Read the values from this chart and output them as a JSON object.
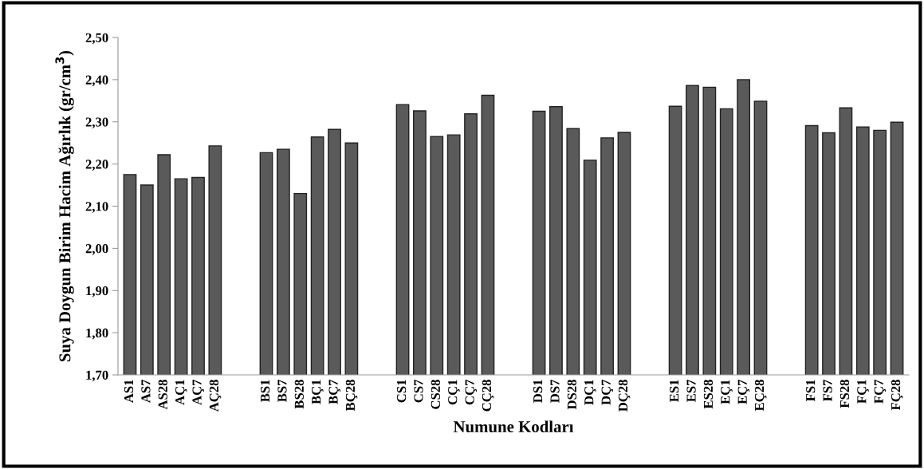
{
  "chart_data": {
    "type": "bar",
    "ylabel": "Suya Doygun Birim Hacim Ağırlık (gr/cm$^{3}$)",
    "xlabel": "Numune Kodları",
    "categories": [
      "AS1",
      "AS7",
      "AS28",
      "AÇ1",
      "AÇ7",
      "AÇ28",
      null,
      null,
      "BS1",
      "BS7",
      "BS28",
      "BÇ1",
      "BÇ7",
      "BÇ28",
      null,
      null,
      "CS1",
      "CS7",
      "CS28",
      "CÇ1",
      "CÇ7",
      "CÇ28",
      null,
      null,
      "DS1",
      "DS7",
      "DS28",
      "DÇ1",
      "DÇ7",
      "DÇ28",
      null,
      null,
      "ES1",
      "ES7",
      "ES28",
      "EÇ1",
      "EÇ7",
      "EÇ28",
      null,
      null,
      "FS1",
      "FS7",
      "FS28",
      "FÇ1",
      "FÇ7",
      "FÇ28"
    ],
    "values": [
      2.175,
      2.15,
      2.222,
      2.165,
      2.168,
      2.243,
      null,
      null,
      2.227,
      2.235,
      2.13,
      2.264,
      2.282,
      2.25,
      null,
      null,
      2.341,
      2.326,
      2.265,
      2.269,
      2.319,
      2.363,
      null,
      null,
      2.325,
      2.336,
      2.284,
      2.209,
      2.262,
      2.275,
      null,
      null,
      2.337,
      2.386,
      2.382,
      2.331,
      2.4,
      2.349,
      null,
      null,
      2.291,
      2.274,
      2.333,
      2.288,
      2.28,
      2.299
    ],
    "color": "#5a5a5a",
    "ylim": [
      1.7,
      2.5
    ],
    "yticks": [
      {
        "value": 1.7,
        "label": "1,70"
      },
      {
        "value": 1.8,
        "label": "1,80"
      },
      {
        "value": 1.9,
        "label": "1,90"
      },
      {
        "value": 2.0,
        "label": "2,00"
      },
      {
        "value": 2.1,
        "label": "2,10"
      },
      {
        "value": 2.2,
        "label": "2,20"
      },
      {
        "value": 2.3,
        "label": "2,30"
      },
      {
        "value": 2.4,
        "label": "2,40"
      },
      {
        "value": 2.5,
        "label": "2,50"
      }
    ],
    "grid": false
  }
}
